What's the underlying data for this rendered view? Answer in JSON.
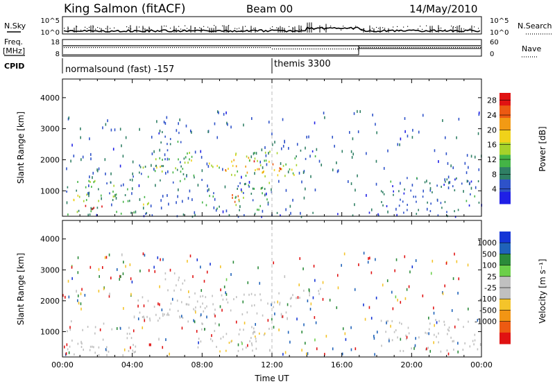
{
  "header": {
    "station": "King Salmon (fitACF)",
    "beam": "Beam 00",
    "date": "14/May/2010"
  },
  "top_panels": {
    "nsky": {
      "label": "N.Sky",
      "tick_top": "10^5",
      "tick_bottom": "10^0"
    },
    "nsearch": {
      "label": "N.Search",
      "tick_top": "10^5",
      "tick_bottom": "10^0"
    },
    "freq": {
      "label_line1": "Freq.",
      "label_line2": "[MHz]",
      "tick_top": "18",
      "tick_bottom": "8"
    },
    "nave": {
      "label": "Nave",
      "tick_top": "60",
      "tick_bottom": "0"
    },
    "cpid": {
      "label": "CPID",
      "segments": [
        {
          "name": "normalsound (fast) -157",
          "start_hour": 0
        },
        {
          "name": "themis 3300",
          "start_hour": 12
        }
      ]
    }
  },
  "colors": {
    "power_scale": [
      "#1f1fe6",
      "#2e52c9",
      "#2f7f64",
      "#44b446",
      "#a6d22a",
      "#f0d21a",
      "#f29a14",
      "#ec5a12",
      "#e01212"
    ],
    "velocity_scale": [
      "#1535d6",
      "#1f62b9",
      "#2b8b3a",
      "#6ccf4a",
      "#c0c0c0",
      "#c0c0c0",
      "#f4c42a",
      "#f29514",
      "#ec5a12",
      "#e01212"
    ]
  },
  "chart_data": [
    {
      "type": "heatmap",
      "name": "power",
      "xlabel": "",
      "ylabel": "Slant Range [km]",
      "xlim": [
        0,
        24
      ],
      "ylim": [
        180,
        4600
      ],
      "x_ticks": [
        "00:00",
        "04:00",
        "08:00",
        "12:00",
        "16:00",
        "20:00",
        "00:00"
      ],
      "x_tick_hours": [
        0,
        4,
        8,
        12,
        16,
        20,
        24
      ],
      "y_ticks": [
        1000,
        2000,
        3000,
        4000
      ],
      "colorbar": {
        "label": "Power [dB]",
        "ticks": [
          4,
          8,
          12,
          16,
          20,
          24,
          28
        ],
        "range": [
          0,
          30
        ]
      },
      "echo_regions": [
        {
          "t": [
            0.2,
            4.2
          ],
          "r": [
            250,
            1400
          ],
          "level": 10
        },
        {
          "t": [
            1.0,
            2.6
          ],
          "r": [
            350,
            620
          ],
          "level": 30
        },
        {
          "t": [
            0.5,
            1.5
          ],
          "r": [
            480,
            900
          ],
          "level": 18
        },
        {
          "t": [
            4.0,
            8.0
          ],
          "r": [
            1300,
            2200
          ],
          "level": 9
        },
        {
          "t": [
            5.0,
            7.0
          ],
          "r": [
            1700,
            2100
          ],
          "level": 14
        },
        {
          "t": [
            5.4,
            7.0
          ],
          "r": [
            2300,
            3000
          ],
          "level": 7
        },
        {
          "t": [
            7.0,
            13.4
          ],
          "r": [
            1500,
            2300
          ],
          "level": 15
        },
        {
          "t": [
            9.0,
            12.5
          ],
          "r": [
            1600,
            2100
          ],
          "level": 22
        },
        {
          "t": [
            13.0,
            15.0
          ],
          "r": [
            2050,
            2350
          ],
          "level": 8
        },
        {
          "t": [
            7.4,
            12.0
          ],
          "r": [
            400,
            1300
          ],
          "level": 10
        },
        {
          "t": [
            8.4,
            10.2
          ],
          "r": [
            650,
            950
          ],
          "level": 27
        },
        {
          "t": [
            4.6,
            5.4
          ],
          "r": [
            400,
            900
          ],
          "level": 14
        },
        {
          "t": [
            18.2,
            23.9
          ],
          "r": [
            350,
            1450
          ],
          "level": 6
        },
        {
          "t": [
            0.0,
            24.0
          ],
          "r": [
            190,
            330
          ],
          "level": 5
        }
      ],
      "scatter_region": {
        "t": [
          0.0,
          24.0
        ],
        "r": [
          300,
          3600
        ]
      }
    },
    {
      "type": "heatmap",
      "name": "velocity",
      "xlabel": "Time UT",
      "ylabel": "Slant Range [km]",
      "xlim": [
        0,
        24
      ],
      "ylim": [
        180,
        4600
      ],
      "x_ticks": [
        "00:00",
        "04:00",
        "08:00",
        "12:00",
        "16:00",
        "20:00",
        "00:00"
      ],
      "x_tick_hours": [
        0,
        4,
        8,
        12,
        16,
        20,
        24
      ],
      "y_ticks": [
        1000,
        2000,
        3000,
        4000
      ],
      "colorbar": {
        "label": "Velocity [m s⁻¹]",
        "ticks": [
          1000,
          500,
          100,
          25,
          -25,
          -100,
          -500,
          -1000
        ]
      },
      "echo_regions": [
        {
          "t": [
            0.2,
            4.2
          ],
          "r": [
            250,
            1400
          ],
          "level": "ground"
        },
        {
          "t": [
            4.0,
            8.0
          ],
          "r": [
            1300,
            2200
          ],
          "level": "ground"
        },
        {
          "t": [
            5.4,
            7.0
          ],
          "r": [
            2300,
            3000
          ],
          "level": "ground"
        },
        {
          "t": [
            7.0,
            13.4
          ],
          "r": [
            1500,
            2300
          ],
          "level": "ground"
        },
        {
          "t": [
            13.0,
            15.0
          ],
          "r": [
            2050,
            2450
          ],
          "level": "ground"
        },
        {
          "t": [
            7.4,
            12.0
          ],
          "r": [
            400,
            1300
          ],
          "level": "ground"
        },
        {
          "t": [
            8.8,
            9.8
          ],
          "r": [
            380,
            760
          ],
          "level": -200
        },
        {
          "t": [
            11.0,
            12.0
          ],
          "r": [
            850,
            1150
          ],
          "level": -150
        },
        {
          "t": [
            18.2,
            23.9
          ],
          "r": [
            350,
            1450
          ],
          "level": "ground"
        }
      ],
      "scatter_region": {
        "t": [
          0.0,
          24.0
        ],
        "r": [
          300,
          3600
        ]
      }
    }
  ]
}
